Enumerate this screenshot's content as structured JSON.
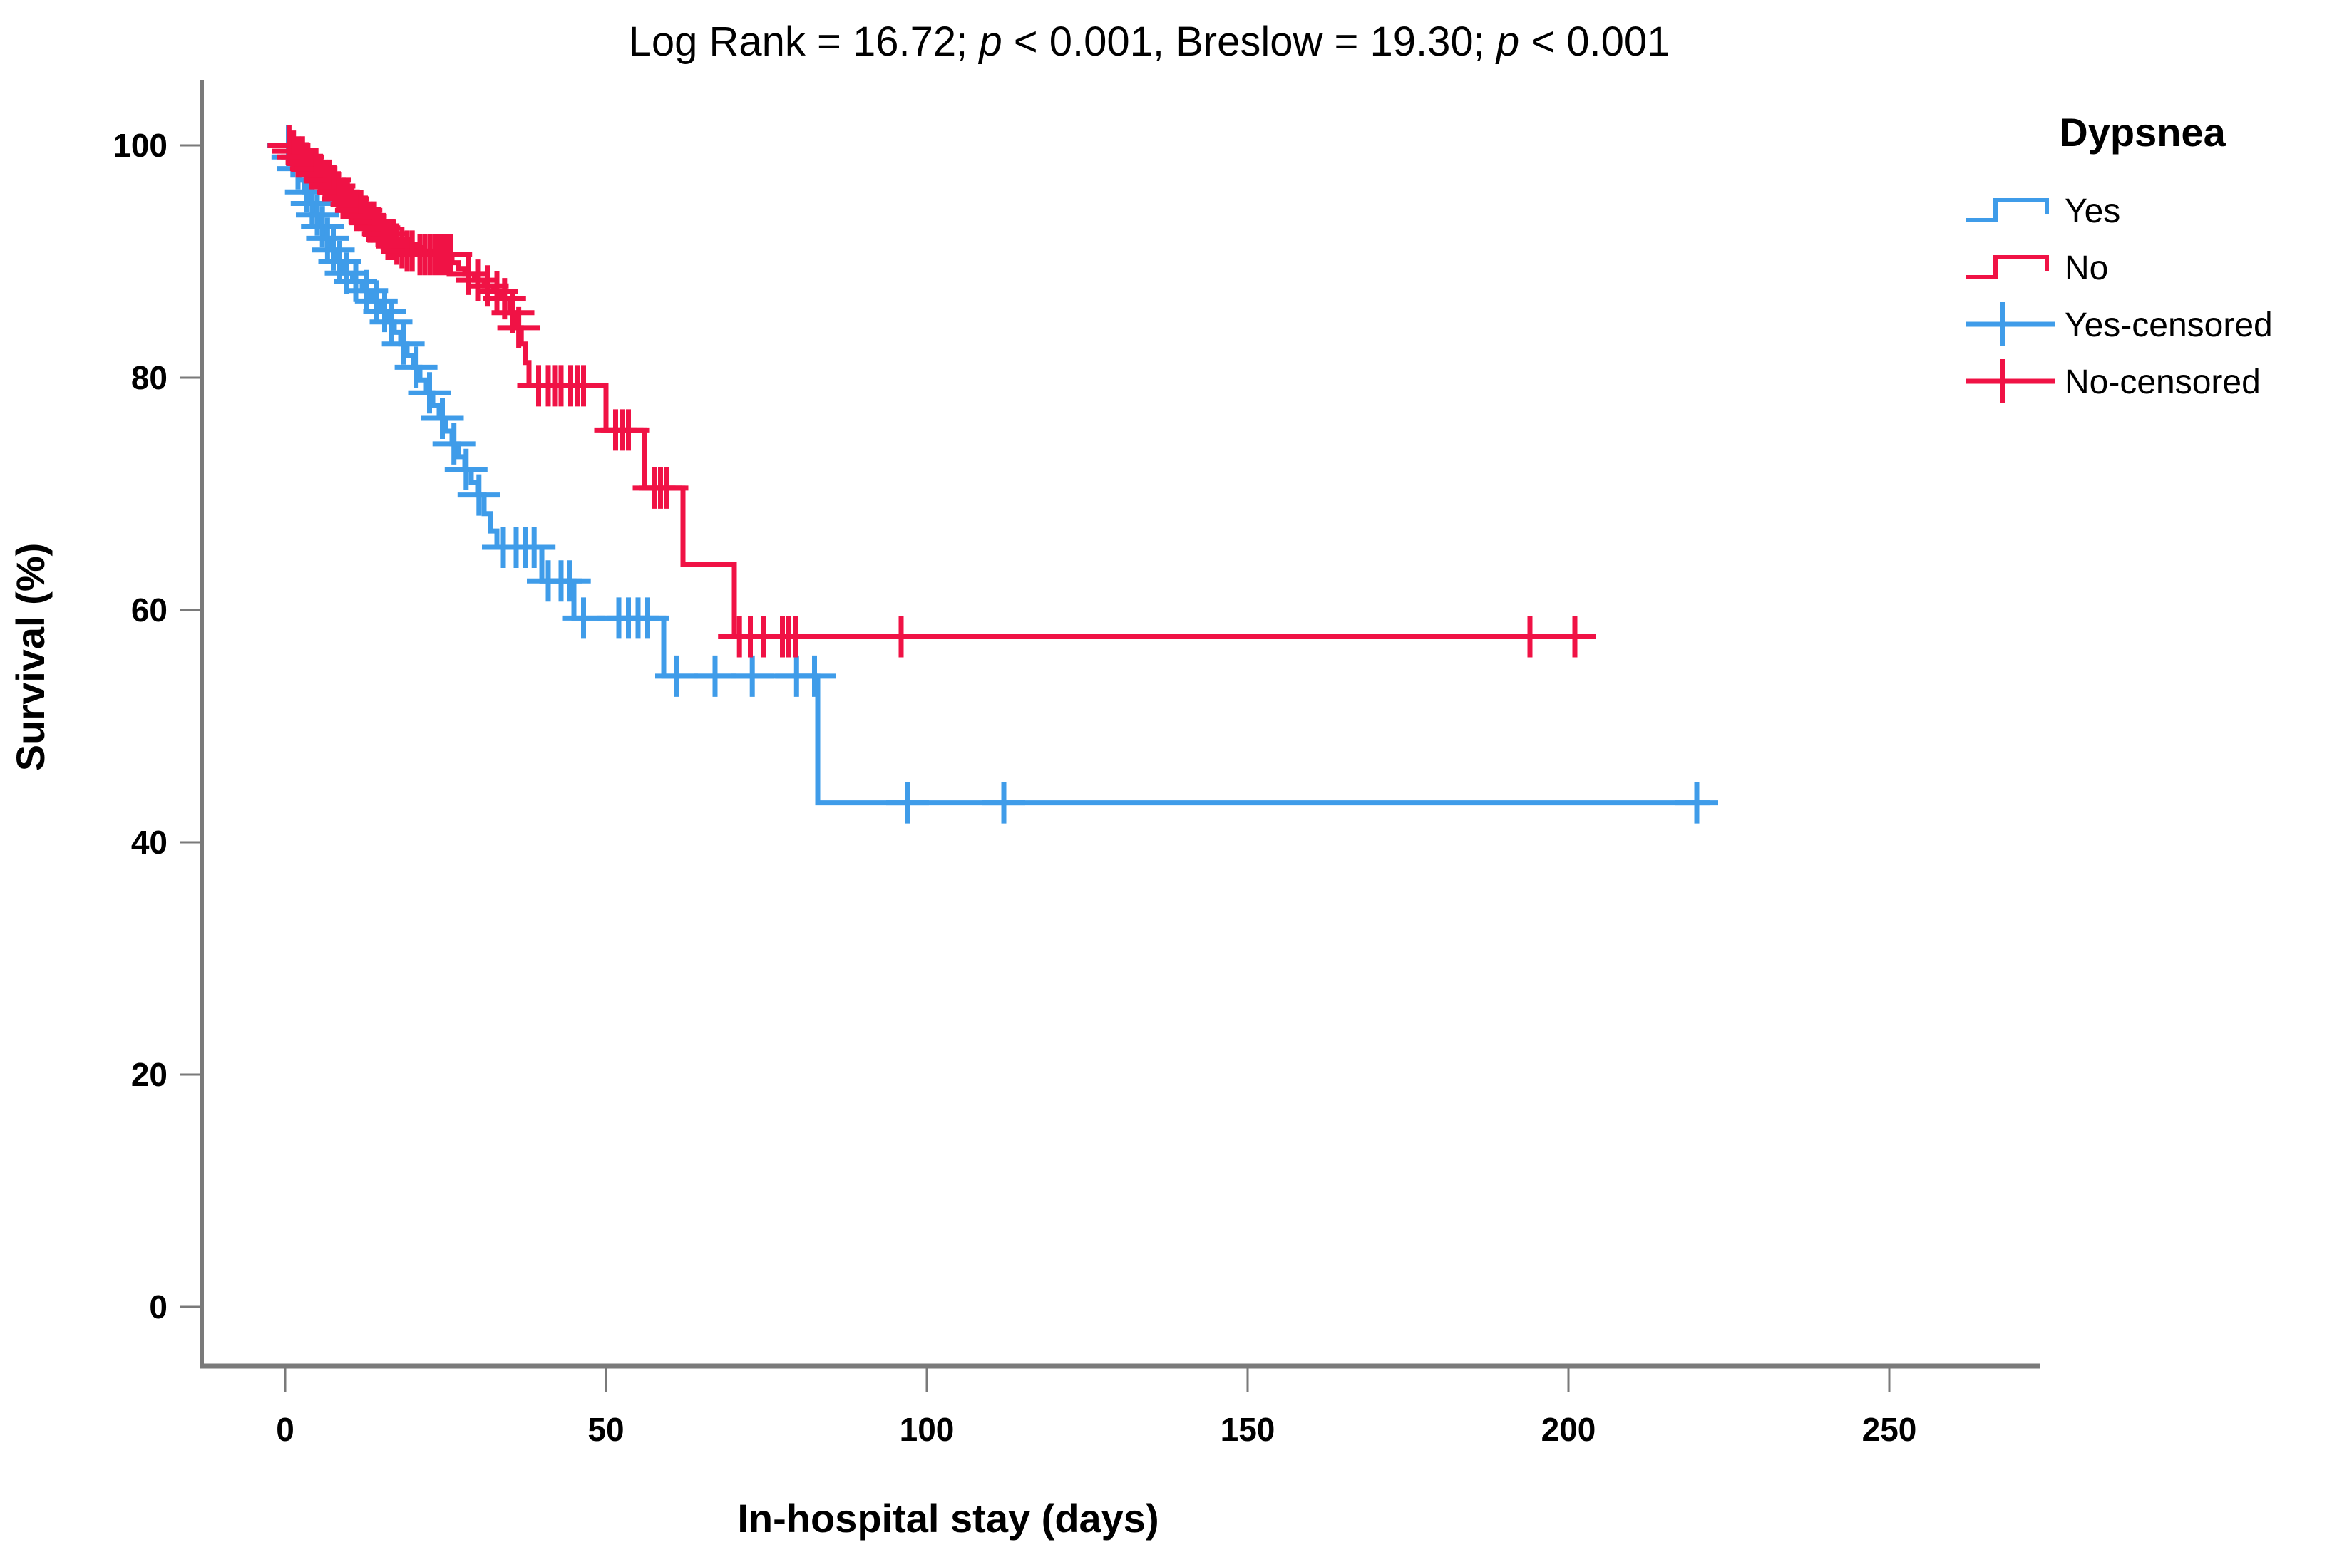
{
  "figure": {
    "background": "#ffffff",
    "text_color": "#000000",
    "axis_color": "#7a7a7a"
  },
  "title": {
    "full": "Log Rank = 16.72; p < 0.001, Breslow = 19.30; p < 0.001",
    "segments": [
      {
        "text": "Log Rank = 16.72; ",
        "italic": false
      },
      {
        "text": "p",
        "italic": true
      },
      {
        "text": " < 0.001, Breslow = 19.30; ",
        "italic": false
      },
      {
        "text": "p",
        "italic": true
      },
      {
        "text": " < 0.001",
        "italic": false
      }
    ]
  },
  "chart_data": {
    "type": "line",
    "subtype": "kaplan-meier-step",
    "title": "Log Rank = 16.72; p < 0.001, Breslow = 19.30; p < 0.001",
    "xlabel": "In-hospital stay (days)",
    "ylabel": "Survival (%)",
    "xlim": [
      0,
      250
    ],
    "ylim": [
      0,
      100
    ],
    "x_ticks": [
      0,
      50,
      100,
      150,
      200,
      250
    ],
    "y_ticks": [
      0,
      20,
      40,
      60,
      80,
      100
    ],
    "grid": false,
    "legend_position": "upper-right-outside",
    "legend": {
      "title": "Dypsnea",
      "entries": [
        {
          "label": "Yes",
          "type": "line",
          "color": "#3F9CE9"
        },
        {
          "label": "No",
          "type": "line",
          "color": "#F01245"
        },
        {
          "label": "Yes-censored",
          "type": "censor",
          "color": "#3F9CE9"
        },
        {
          "label": "No-censored",
          "type": "censor",
          "color": "#F01245"
        }
      ]
    },
    "series": [
      {
        "name": "Yes",
        "color": "#3F9CE9",
        "points": [
          [
            0,
            100
          ],
          [
            0.7,
            99
          ],
          [
            1.5,
            98
          ],
          [
            2.3,
            97
          ],
          [
            3,
            96
          ],
          [
            3.8,
            95
          ],
          [
            4.6,
            94
          ],
          [
            5.4,
            93
          ],
          [
            6.2,
            92
          ],
          [
            7,
            91
          ],
          [
            8,
            90
          ],
          [
            9,
            89
          ],
          [
            10.5,
            88.3
          ],
          [
            12,
            87.5
          ],
          [
            13.5,
            86.6
          ],
          [
            15,
            85.7
          ],
          [
            16,
            84.8
          ],
          [
            17,
            83.9
          ],
          [
            18,
            82.9
          ],
          [
            19,
            81.9
          ],
          [
            20,
            80.9
          ],
          [
            21,
            79.8
          ],
          [
            22,
            78.7
          ],
          [
            23,
            77.6
          ],
          [
            24,
            76.5
          ],
          [
            25,
            75.4
          ],
          [
            26,
            74.3
          ],
          [
            27,
            73.2
          ],
          [
            28,
            72.1
          ],
          [
            29,
            71
          ],
          [
            30,
            69.9
          ],
          [
            31,
            68.3
          ],
          [
            32,
            66.8
          ],
          [
            33,
            65.4
          ],
          [
            40,
            62.5
          ],
          [
            45,
            59.3
          ],
          [
            59,
            54.3
          ],
          [
            83,
            43.4
          ],
          [
            222,
            43.4
          ]
        ],
        "censored_days": [
          0.5,
          1.2,
          2,
          3.3,
          4.2,
          5,
          5.8,
          6.6,
          7.5,
          8.5,
          9.5,
          11,
          12.7,
          14.2,
          15.5,
          16.5,
          18.4,
          20.4,
          22.5,
          24.5,
          26.3,
          28.2,
          30.2,
          34,
          36,
          37.5,
          38.8,
          41,
          43,
          44.3,
          46.5,
          52,
          53.5,
          55,
          56.5,
          61,
          67,
          72.8,
          79.7,
          82.5,
          97,
          112,
          220
        ]
      },
      {
        "name": "No",
        "color": "#F01245",
        "points": [
          [
            0,
            100
          ],
          [
            1,
            99.5
          ],
          [
            2,
            99
          ],
          [
            3,
            98.5
          ],
          [
            4,
            98
          ],
          [
            5,
            97.5
          ],
          [
            6,
            97
          ],
          [
            7,
            96.5
          ],
          [
            8,
            96
          ],
          [
            9,
            95.4
          ],
          [
            10,
            94.9
          ],
          [
            11,
            94.4
          ],
          [
            12,
            93.9
          ],
          [
            13,
            93.4
          ],
          [
            14,
            92.9
          ],
          [
            15,
            92.4
          ],
          [
            16,
            91.9
          ],
          [
            17,
            91.5
          ],
          [
            18,
            91.2
          ],
          [
            19,
            90.9
          ],
          [
            20,
            90.6
          ],
          [
            26,
            89.9
          ],
          [
            27,
            89.4
          ],
          [
            28,
            88.9
          ],
          [
            29.5,
            88.4
          ],
          [
            31,
            87.9
          ],
          [
            32.5,
            87.4
          ],
          [
            33.5,
            86.8
          ],
          [
            35,
            85.6
          ],
          [
            36,
            84.3
          ],
          [
            36.8,
            82.9
          ],
          [
            37.4,
            81.3
          ],
          [
            38,
            79.3
          ],
          [
            50,
            75.5
          ],
          [
            56,
            70.5
          ],
          [
            62,
            63.9
          ],
          [
            70,
            57.7
          ],
          [
            203,
            57.7
          ]
        ],
        "censored_days": [
          0.6,
          1.3,
          2,
          2.7,
          3.4,
          4.1,
          4.8,
          5.5,
          6.2,
          6.9,
          7.6,
          8.3,
          9,
          9.7,
          10.4,
          11.1,
          11.8,
          12.5,
          13.2,
          13.9,
          14.6,
          15.3,
          16,
          16.7,
          17.4,
          18.2,
          19,
          19.8,
          21,
          21.8,
          22.6,
          23.4,
          24.2,
          25,
          25.8,
          28.5,
          30,
          31.5,
          33,
          34.2,
          35.5,
          36.4,
          39.5,
          41,
          42,
          43,
          44.5,
          45.5,
          46.5,
          51.5,
          52.5,
          53.5,
          57.5,
          58.5,
          59.5,
          70.8,
          72.5,
          74.6,
          77.5,
          78.5,
          79.5,
          96,
          194,
          201
        ]
      }
    ]
  }
}
